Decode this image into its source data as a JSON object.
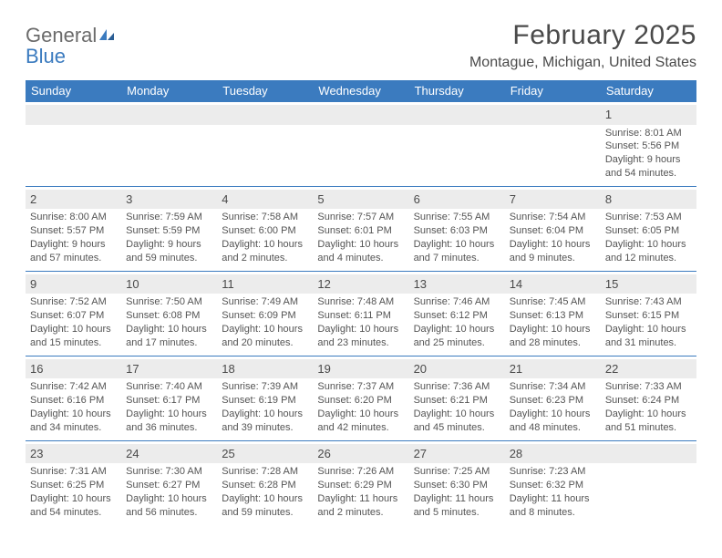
{
  "logo": {
    "word1": "General",
    "word2": "Blue"
  },
  "title": "February 2025",
  "location": "Montague, Michigan, United States",
  "colors": {
    "headerBar": "#3b7bbf",
    "headerText": "#ffffff",
    "dateStrip": "#ececec",
    "bodyText": "#545454",
    "ruleLine": "#3b7bbf"
  },
  "dayNames": [
    "Sunday",
    "Monday",
    "Tuesday",
    "Wednesday",
    "Thursday",
    "Friday",
    "Saturday"
  ],
  "weeks": [
    [
      null,
      null,
      null,
      null,
      null,
      null,
      {
        "n": "1",
        "sr": "Sunrise: 8:01 AM",
        "ss": "Sunset: 5:56 PM",
        "d1": "Daylight: 9 hours",
        "d2": "and 54 minutes."
      }
    ],
    [
      {
        "n": "2",
        "sr": "Sunrise: 8:00 AM",
        "ss": "Sunset: 5:57 PM",
        "d1": "Daylight: 9 hours",
        "d2": "and 57 minutes."
      },
      {
        "n": "3",
        "sr": "Sunrise: 7:59 AM",
        "ss": "Sunset: 5:59 PM",
        "d1": "Daylight: 9 hours",
        "d2": "and 59 minutes."
      },
      {
        "n": "4",
        "sr": "Sunrise: 7:58 AM",
        "ss": "Sunset: 6:00 PM",
        "d1": "Daylight: 10 hours",
        "d2": "and 2 minutes."
      },
      {
        "n": "5",
        "sr": "Sunrise: 7:57 AM",
        "ss": "Sunset: 6:01 PM",
        "d1": "Daylight: 10 hours",
        "d2": "and 4 minutes."
      },
      {
        "n": "6",
        "sr": "Sunrise: 7:55 AM",
        "ss": "Sunset: 6:03 PM",
        "d1": "Daylight: 10 hours",
        "d2": "and 7 minutes."
      },
      {
        "n": "7",
        "sr": "Sunrise: 7:54 AM",
        "ss": "Sunset: 6:04 PM",
        "d1": "Daylight: 10 hours",
        "d2": "and 9 minutes."
      },
      {
        "n": "8",
        "sr": "Sunrise: 7:53 AM",
        "ss": "Sunset: 6:05 PM",
        "d1": "Daylight: 10 hours",
        "d2": "and 12 minutes."
      }
    ],
    [
      {
        "n": "9",
        "sr": "Sunrise: 7:52 AM",
        "ss": "Sunset: 6:07 PM",
        "d1": "Daylight: 10 hours",
        "d2": "and 15 minutes."
      },
      {
        "n": "10",
        "sr": "Sunrise: 7:50 AM",
        "ss": "Sunset: 6:08 PM",
        "d1": "Daylight: 10 hours",
        "d2": "and 17 minutes."
      },
      {
        "n": "11",
        "sr": "Sunrise: 7:49 AM",
        "ss": "Sunset: 6:09 PM",
        "d1": "Daylight: 10 hours",
        "d2": "and 20 minutes."
      },
      {
        "n": "12",
        "sr": "Sunrise: 7:48 AM",
        "ss": "Sunset: 6:11 PM",
        "d1": "Daylight: 10 hours",
        "d2": "and 23 minutes."
      },
      {
        "n": "13",
        "sr": "Sunrise: 7:46 AM",
        "ss": "Sunset: 6:12 PM",
        "d1": "Daylight: 10 hours",
        "d2": "and 25 minutes."
      },
      {
        "n": "14",
        "sr": "Sunrise: 7:45 AM",
        "ss": "Sunset: 6:13 PM",
        "d1": "Daylight: 10 hours",
        "d2": "and 28 minutes."
      },
      {
        "n": "15",
        "sr": "Sunrise: 7:43 AM",
        "ss": "Sunset: 6:15 PM",
        "d1": "Daylight: 10 hours",
        "d2": "and 31 minutes."
      }
    ],
    [
      {
        "n": "16",
        "sr": "Sunrise: 7:42 AM",
        "ss": "Sunset: 6:16 PM",
        "d1": "Daylight: 10 hours",
        "d2": "and 34 minutes."
      },
      {
        "n": "17",
        "sr": "Sunrise: 7:40 AM",
        "ss": "Sunset: 6:17 PM",
        "d1": "Daylight: 10 hours",
        "d2": "and 36 minutes."
      },
      {
        "n": "18",
        "sr": "Sunrise: 7:39 AM",
        "ss": "Sunset: 6:19 PM",
        "d1": "Daylight: 10 hours",
        "d2": "and 39 minutes."
      },
      {
        "n": "19",
        "sr": "Sunrise: 7:37 AM",
        "ss": "Sunset: 6:20 PM",
        "d1": "Daylight: 10 hours",
        "d2": "and 42 minutes."
      },
      {
        "n": "20",
        "sr": "Sunrise: 7:36 AM",
        "ss": "Sunset: 6:21 PM",
        "d1": "Daylight: 10 hours",
        "d2": "and 45 minutes."
      },
      {
        "n": "21",
        "sr": "Sunrise: 7:34 AM",
        "ss": "Sunset: 6:23 PM",
        "d1": "Daylight: 10 hours",
        "d2": "and 48 minutes."
      },
      {
        "n": "22",
        "sr": "Sunrise: 7:33 AM",
        "ss": "Sunset: 6:24 PM",
        "d1": "Daylight: 10 hours",
        "d2": "and 51 minutes."
      }
    ],
    [
      {
        "n": "23",
        "sr": "Sunrise: 7:31 AM",
        "ss": "Sunset: 6:25 PM",
        "d1": "Daylight: 10 hours",
        "d2": "and 54 minutes."
      },
      {
        "n": "24",
        "sr": "Sunrise: 7:30 AM",
        "ss": "Sunset: 6:27 PM",
        "d1": "Daylight: 10 hours",
        "d2": "and 56 minutes."
      },
      {
        "n": "25",
        "sr": "Sunrise: 7:28 AM",
        "ss": "Sunset: 6:28 PM",
        "d1": "Daylight: 10 hours",
        "d2": "and 59 minutes."
      },
      {
        "n": "26",
        "sr": "Sunrise: 7:26 AM",
        "ss": "Sunset: 6:29 PM",
        "d1": "Daylight: 11 hours",
        "d2": "and 2 minutes."
      },
      {
        "n": "27",
        "sr": "Sunrise: 7:25 AM",
        "ss": "Sunset: 6:30 PM",
        "d1": "Daylight: 11 hours",
        "d2": "and 5 minutes."
      },
      {
        "n": "28",
        "sr": "Sunrise: 7:23 AM",
        "ss": "Sunset: 6:32 PM",
        "d1": "Daylight: 11 hours",
        "d2": "and 8 minutes."
      },
      null
    ]
  ]
}
